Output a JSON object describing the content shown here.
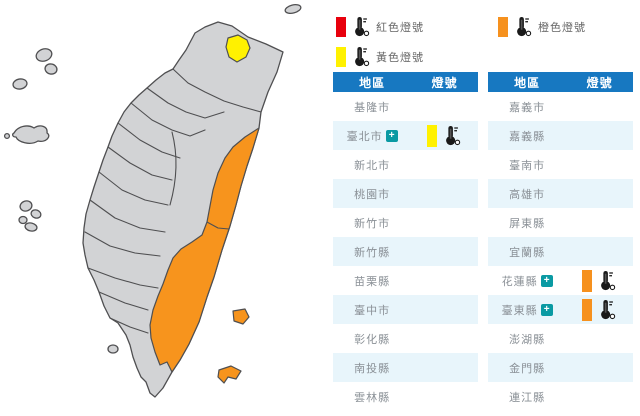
{
  "legend": {
    "items": [
      {
        "id": "red",
        "label": "紅色燈號",
        "color": "#e8000d"
      },
      {
        "id": "orange",
        "label": "橙色燈號",
        "color": "#f6911e"
      },
      {
        "id": "yellow",
        "label": "黃色燈號",
        "color": "#fff100"
      }
    ]
  },
  "signal_colors": {
    "red": "#e8000d",
    "orange": "#f6911e",
    "yellow": "#fff100"
  },
  "tables": [
    {
      "headers": {
        "region": "地區",
        "signal": "燈號"
      },
      "rows": [
        {
          "region": "基隆市"
        },
        {
          "region": "臺北市",
          "expandable": true,
          "signal": "yellow"
        },
        {
          "region": "新北市"
        },
        {
          "region": "桃園市"
        },
        {
          "region": "新竹市"
        },
        {
          "region": "新竹縣"
        },
        {
          "region": "苗栗縣"
        },
        {
          "region": "臺中市"
        },
        {
          "region": "彰化縣"
        },
        {
          "region": "南投縣"
        },
        {
          "region": "雲林縣"
        }
      ]
    },
    {
      "headers": {
        "region": "地區",
        "signal": "燈號"
      },
      "rows": [
        {
          "region": "嘉義市"
        },
        {
          "region": "嘉義縣"
        },
        {
          "region": "臺南市"
        },
        {
          "region": "高雄市"
        },
        {
          "region": "屏東縣"
        },
        {
          "region": "宜蘭縣"
        },
        {
          "region": "花蓮縣",
          "expandable": true,
          "signal": "orange"
        },
        {
          "region": "臺東縣",
          "expandable": true,
          "signal": "orange"
        },
        {
          "region": "澎湖縣"
        },
        {
          "region": "金門縣"
        },
        {
          "region": "連江縣"
        }
      ]
    }
  ],
  "map": {
    "colors": {
      "land": "#d2d3d5",
      "border": "#4f4f51",
      "warning_orange": "#f7941d",
      "warning_yellow": "#fff100"
    },
    "warning_regions": [
      {
        "name": "臺北市",
        "level": "yellow"
      },
      {
        "name": "花蓮縣",
        "level": "orange"
      },
      {
        "name": "臺東縣",
        "level": "orange"
      }
    ]
  }
}
